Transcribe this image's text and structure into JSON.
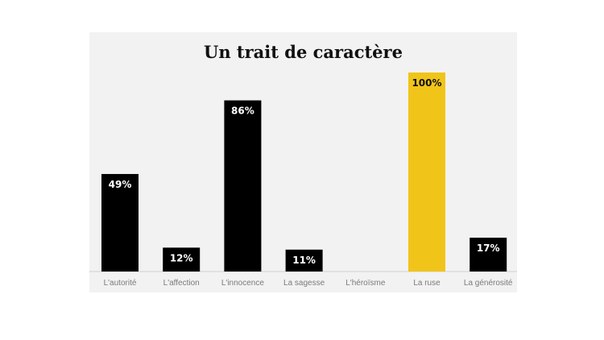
{
  "chart_data": {
    "type": "bar",
    "title": "Un trait de caractère",
    "categories": [
      "L'autorité",
      "L'affection",
      "L'innocence",
      "La sagesse",
      "L'héroïsme",
      "La ruse",
      "La générosité"
    ],
    "values": [
      49,
      12,
      86,
      11,
      0,
      100,
      17
    ],
    "value_labels": [
      "49%",
      "12%",
      "86%",
      "11%",
      "",
      "100%",
      "17%"
    ],
    "ylim": [
      0,
      100
    ],
    "grid": false,
    "legend": "none",
    "colors": {
      "default_bar": "#000000",
      "highlight_bar": "#f0c419",
      "default_label": "#ffffff",
      "highlight_label": "#111111",
      "baseline": "#d0d0d0",
      "panel": "#f2f2f2"
    },
    "highlight_index": 5
  }
}
